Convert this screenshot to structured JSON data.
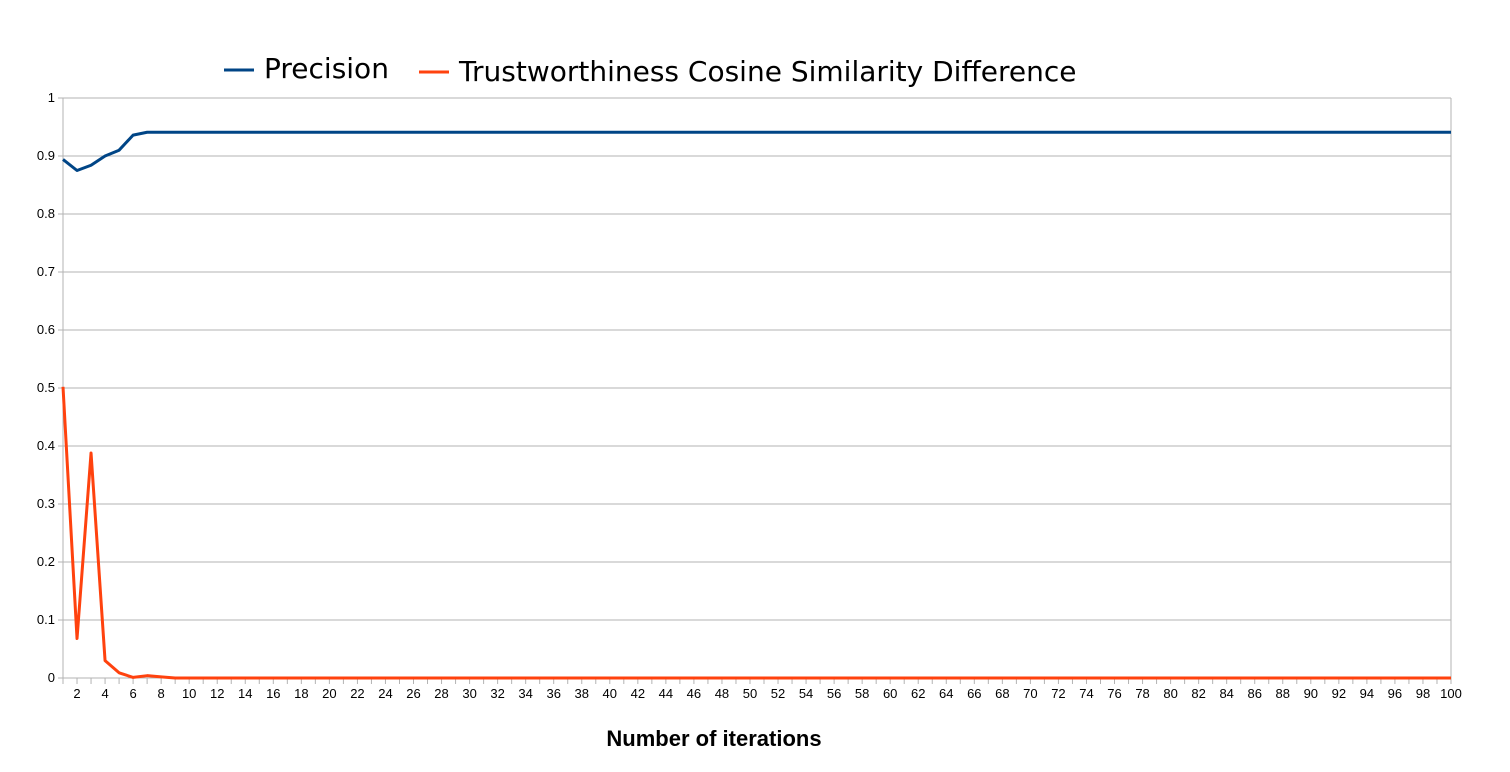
{
  "chart_data": {
    "type": "line",
    "title": "",
    "xlabel": "Number of iterations",
    "ylabel": "",
    "xlim": [
      1,
      100
    ],
    "ylim": [
      0,
      1
    ],
    "grid": true,
    "legend_position": "top-center",
    "y_ticks": [
      "0",
      "0.1",
      "0.2",
      "0.3",
      "0.4",
      "0.5",
      "0.6",
      "0.7",
      "0.8",
      "0.9",
      "1"
    ],
    "x_ticks": [
      "2",
      "4",
      "6",
      "8",
      "10",
      "12",
      "14",
      "16",
      "18",
      "20",
      "22",
      "24",
      "26",
      "28",
      "30",
      "32",
      "34",
      "36",
      "38",
      "40",
      "42",
      "44",
      "46",
      "48",
      "50",
      "52",
      "54",
      "56",
      "58",
      "60",
      "62",
      "64",
      "66",
      "68",
      "70",
      "72",
      "74",
      "76",
      "78",
      "80",
      "82",
      "84",
      "86",
      "88",
      "90",
      "92",
      "94",
      "96",
      "98",
      "100"
    ],
    "series": [
      {
        "name": "Precision",
        "color": "#004586",
        "points": [
          [
            1,
            0.894
          ],
          [
            2,
            0.875
          ],
          [
            3,
            0.884
          ],
          [
            4,
            0.9
          ],
          [
            5,
            0.91
          ],
          [
            6,
            0.936
          ],
          [
            7,
            0.941
          ],
          [
            8,
            0.941
          ],
          [
            100,
            0.941
          ]
        ]
      },
      {
        "name": "Trustworthiness Cosine Similarity Difference",
        "color": "#ff420e",
        "points": [
          [
            1,
            0.502
          ],
          [
            2,
            0.068
          ],
          [
            3,
            0.388
          ],
          [
            4,
            0.03
          ],
          [
            5,
            0.009
          ],
          [
            6,
            0.001
          ],
          [
            7,
            0.004
          ],
          [
            8,
            0.002
          ],
          [
            9,
            0.0
          ],
          [
            100,
            0.0
          ]
        ]
      }
    ]
  }
}
